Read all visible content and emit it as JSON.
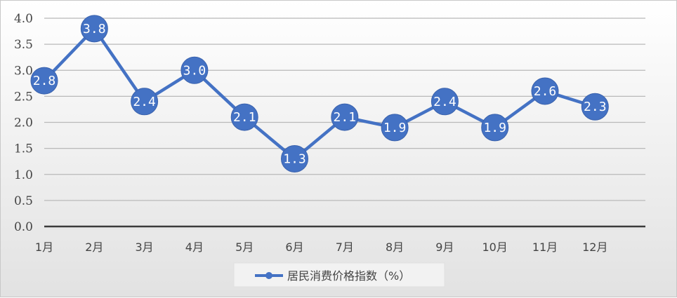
{
  "chart_data": {
    "type": "line",
    "title": "",
    "xlabel": "",
    "ylabel": "",
    "categories": [
      "1月",
      "2月",
      "3月",
      "4月",
      "5月",
      "6月",
      "7月",
      "8月",
      "9月",
      "10月",
      "11月",
      "12月"
    ],
    "series": [
      {
        "name": "居民消费价格指数（%）",
        "values": [
          2.8,
          3.8,
          2.4,
          3.0,
          2.1,
          1.3,
          2.1,
          1.9,
          2.4,
          1.9,
          2.6,
          2.3
        ],
        "labels": [
          "2.8",
          "3.8",
          "2.4",
          "3.0",
          "2.1",
          "1.3",
          "2.1",
          "1.9",
          "2.4",
          "1.9",
          "2.6",
          "2.3"
        ],
        "color": "#4472c4"
      }
    ],
    "ylim": [
      0,
      4.0
    ],
    "yticks": [
      "0.0",
      "0.5",
      "1.0",
      "1.5",
      "2.0",
      "2.5",
      "3.0",
      "3.5",
      "4.0"
    ],
    "grid": true,
    "legend": "bottom"
  }
}
